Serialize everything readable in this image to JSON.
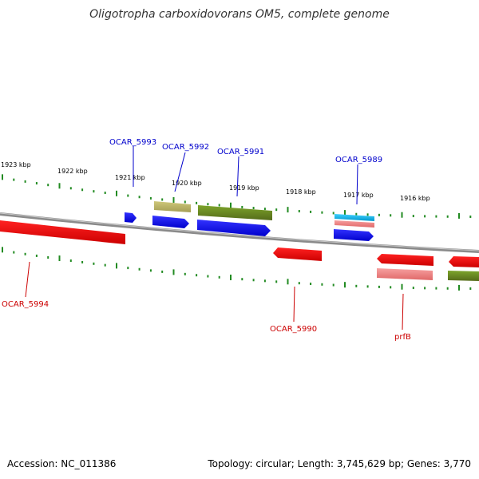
{
  "title": "Oligotropha carboxidovorans OM5, complete genome",
  "footer": {
    "accession": "Accession: NC_011386",
    "summary": "Topology: circular; Length: 3,745,629 bp; Genes: 3,770"
  },
  "colors": {
    "cds_blue": "#0000ee",
    "cds_red": "#ee0000",
    "olive": "#6b8e23",
    "tan": "#bdb76b",
    "pink": "#f08080",
    "cyan": "#00bfff",
    "backbone": "#808080",
    "tick": "#228b22",
    "label_blue": "#0000cc",
    "label_red": "#cc0000"
  },
  "scale": {
    "unit": "kbp",
    "labels": [
      {
        "kbp": 1923,
        "text": "1923 kbp"
      },
      {
        "kbp": 1922,
        "text": "1922 kbp"
      },
      {
        "kbp": 1921,
        "text": "1921 kbp"
      },
      {
        "kbp": 1920,
        "text": "1920 kbp"
      },
      {
        "kbp": 1919,
        "text": "1919 kbp"
      },
      {
        "kbp": 1918,
        "text": "1918 kbp"
      },
      {
        "kbp": 1917,
        "text": "1917 kbp"
      },
      {
        "kbp": 1916,
        "text": "1916 kbp"
      }
    ]
  },
  "gene_labels": [
    {
      "text": "OCAR_5993",
      "color": "label_blue"
    },
    {
      "text": "OCAR_5992",
      "color": "label_blue"
    },
    {
      "text": "OCAR_5991",
      "color": "label_blue"
    },
    {
      "text": "OCAR_5989",
      "color": "label_blue"
    },
    {
      "text": "OCAR_5994",
      "color": "label_red"
    },
    {
      "text": "OCAR_5990",
      "color": "label_red"
    },
    {
      "text": "prfB",
      "color": "label_red"
    }
  ]
}
